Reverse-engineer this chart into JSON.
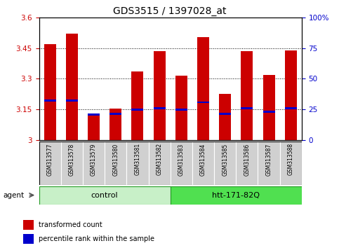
{
  "title": "GDS3515 / 1397028_at",
  "samples": [
    "GSM313577",
    "GSM313578",
    "GSM313579",
    "GSM313580",
    "GSM313581",
    "GSM313582",
    "GSM313583",
    "GSM313584",
    "GSM313585",
    "GSM313586",
    "GSM313587",
    "GSM313588"
  ],
  "red_values": [
    3.47,
    3.52,
    3.13,
    3.155,
    3.335,
    3.435,
    3.315,
    3.505,
    3.225,
    3.435,
    3.32,
    3.44
  ],
  "blue_values": [
    3.195,
    3.195,
    3.125,
    3.13,
    3.15,
    3.155,
    3.15,
    3.185,
    3.13,
    3.155,
    3.14,
    3.155
  ],
  "ymin": 3.0,
  "ymax": 3.6,
  "y_ticks": [
    3.0,
    3.15,
    3.3,
    3.45,
    3.6
  ],
  "y_tick_labels": [
    "3",
    "3.15",
    "3.3",
    "3.45",
    "3.6"
  ],
  "y2_ticks": [
    0,
    25,
    50,
    75,
    100
  ],
  "y2_tick_labels": [
    "0",
    "25",
    "50",
    "75",
    "100%"
  ],
  "groups": [
    {
      "label": "control",
      "start": 0,
      "end": 6,
      "color": "#c8f0c8"
    },
    {
      "label": "htt-171-82Q",
      "start": 6,
      "end": 12,
      "color": "#50e050"
    }
  ],
  "bar_color": "#cc0000",
  "blue_color": "#0000cc",
  "sample_bg": "#d0d0d0",
  "agent_label": "agent",
  "legend_red": "transformed count",
  "legend_blue": "percentile rank within the sample",
  "bar_width": 0.55,
  "title_fontsize": 10
}
